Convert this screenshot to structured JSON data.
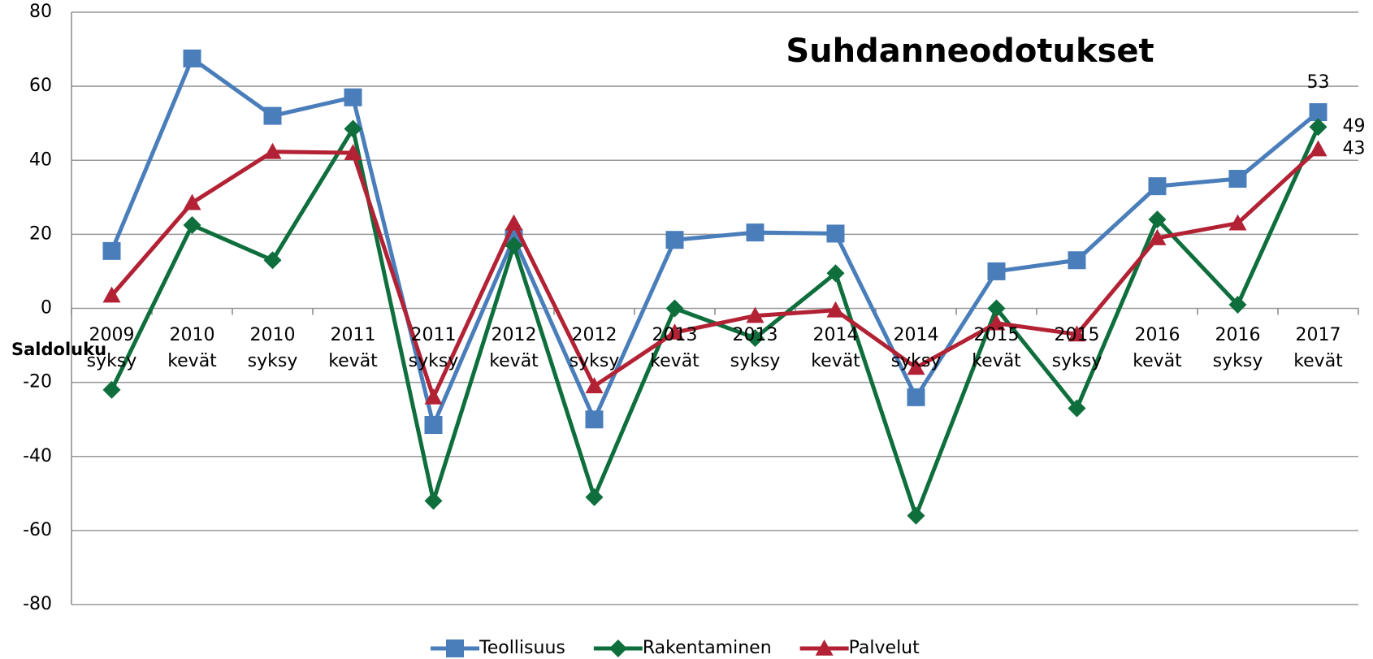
{
  "chart_data": {
    "type": "line",
    "title": "Suhdanneodotukset",
    "ylabel": "Saldoluku",
    "categories": [
      "2009 syksy",
      "2010 kevät",
      "2010 syksy",
      "2011 kevät",
      "2011 syksy",
      "2012 kevät",
      "2012 syksy",
      "2013 kevät",
      "2013 syksy",
      "2014 kevät",
      "2014 syksy",
      "2015 kevät",
      "2015 syksy",
      "2016 kevät",
      "2016 syksy",
      "2017 kevät"
    ],
    "series": [
      {
        "name": "Teollisuus",
        "color": "#4a7ebb",
        "marker": "square",
        "values": [
          15.5,
          67.5,
          52,
          57,
          -31.5,
          19,
          -30,
          18.5,
          20.5,
          20.2,
          -24,
          10,
          13,
          33,
          35,
          53
        ]
      },
      {
        "name": "Rakentaminen",
        "color": "#0e6e3c",
        "marker": "diamond",
        "values": [
          -22,
          22.5,
          13,
          48.5,
          -52,
          17,
          -51,
          0,
          -8,
          9.5,
          -56,
          0,
          -27,
          24,
          1,
          49
        ]
      },
      {
        "name": "Palvelut",
        "color": "#b22234",
        "marker": "triangle",
        "values": [
          3.5,
          28.5,
          42.3,
          42,
          -24,
          23,
          -21,
          -6.5,
          -2,
          -0.5,
          -16,
          -4,
          -7,
          19,
          23,
          43
        ]
      }
    ],
    "ylim": [
      -80,
      80
    ],
    "yticks": [
      -80,
      -60,
      -40,
      -20,
      0,
      20,
      40,
      60,
      80
    ],
    "grid": true,
    "legend": "bottom"
  }
}
